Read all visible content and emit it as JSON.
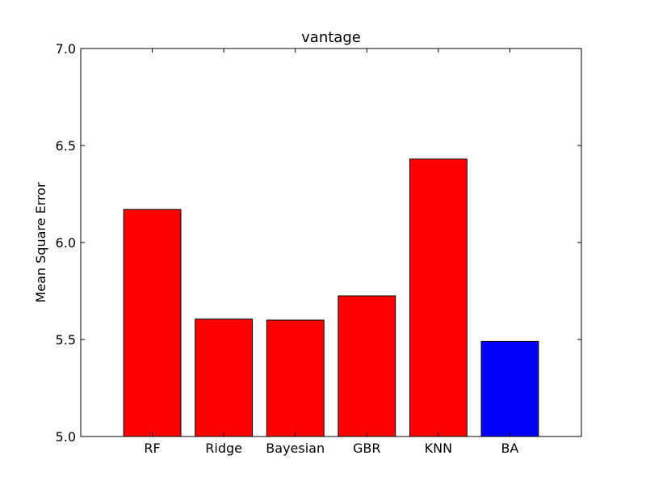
{
  "chart_data": {
    "type": "bar",
    "title": "vantage",
    "xlabel": "",
    "ylabel": "Mean Square Error",
    "categories": [
      "RF",
      "Ridge",
      "Bayesian",
      "GBR",
      "KNN",
      "BA"
    ],
    "values": [
      6.17,
      5.605,
      5.6,
      5.725,
      6.43,
      5.49
    ],
    "colors": [
      "#ff0000",
      "#ff0000",
      "#ff0000",
      "#ff0000",
      "#ff0000",
      "#0000ff"
    ],
    "ylim": [
      5.0,
      7.0
    ],
    "yticks": [
      5.0,
      5.5,
      6.0,
      6.5,
      7.0
    ],
    "ytick_labels": [
      "5.0",
      "5.5",
      "6.0",
      "6.5",
      "7.0"
    ],
    "grid": false,
    "legend": "none"
  }
}
